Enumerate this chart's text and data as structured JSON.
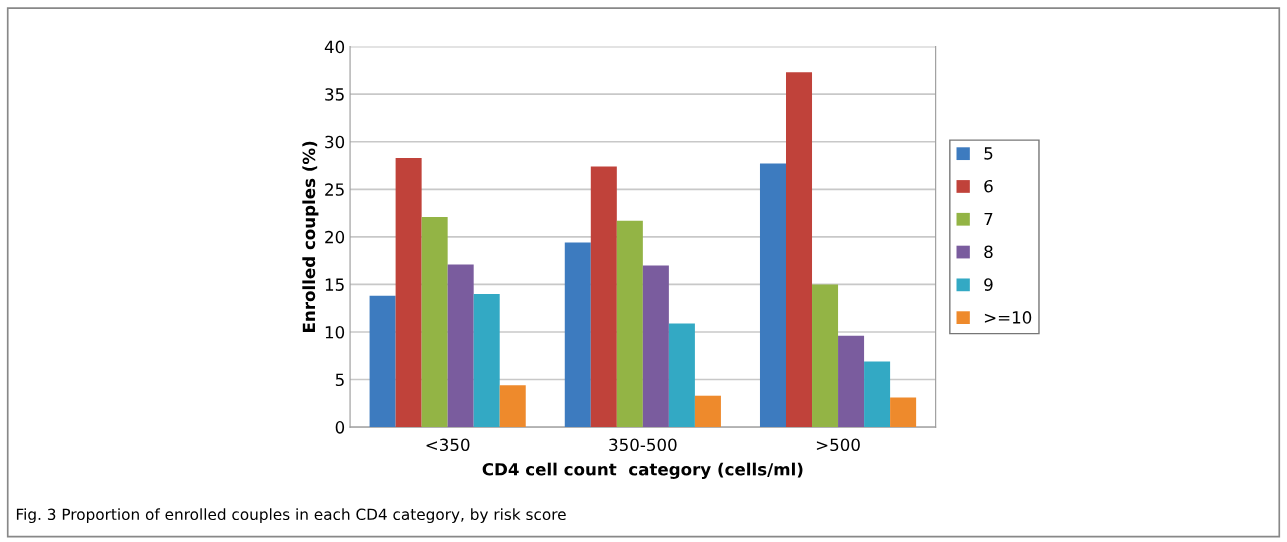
{
  "chart_data": {
    "type": "bar",
    "xlabel": "CD4 cell count  category (cells/ml)",
    "ylabel": "Enrolled couples (%)",
    "categories": [
      "<350",
      "350-500",
      ">500"
    ],
    "series": [
      {
        "name": "5",
        "color": "#3d7bbf",
        "values": [
          13.8,
          19.4,
          27.7
        ]
      },
      {
        "name": "6",
        "color": "#c0423a",
        "values": [
          28.3,
          27.4,
          37.3
        ]
      },
      {
        "name": "7",
        "color": "#93b445",
        "values": [
          22.1,
          21.7,
          15.0
        ]
      },
      {
        "name": "8",
        "color": "#7a5c9e",
        "values": [
          17.1,
          17.0,
          9.6
        ]
      },
      {
        "name": "9",
        "color": "#33a9c4",
        "values": [
          14.0,
          10.9,
          6.9
        ]
      },
      {
        "name": ">=10",
        "color": "#ee8a2c",
        "values": [
          4.4,
          3.3,
          3.1
        ]
      }
    ],
    "ylim": [
      0,
      40
    ],
    "yticks": [
      0,
      5,
      10,
      15,
      20,
      25,
      30,
      35,
      40
    ],
    "grid": "y",
    "legend": "right",
    "annotations": [
      "Fig. 3 Proportion of enrolled couples in each CD4 category, by risk score"
    ]
  }
}
